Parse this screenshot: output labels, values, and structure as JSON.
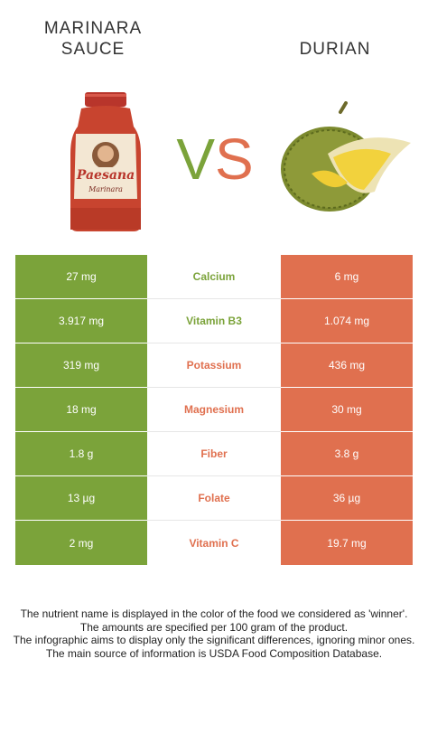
{
  "header": {
    "left_food": "MARINARA\nSAUCE",
    "right_food": "DURIAN",
    "vs_v": "V",
    "vs_s": "S"
  },
  "colors": {
    "left_accent": "#7ba33a",
    "right_accent": "#e0704f"
  },
  "images": {
    "left": "marinara-jar-image",
    "right": "durian-fruit-image",
    "jar_label_brand": "Paesana",
    "jar_label_sub": "Marinara"
  },
  "rows": [
    {
      "nutrient": "Calcium",
      "left": "27 mg",
      "right": "6 mg",
      "winner": "left"
    },
    {
      "nutrient": "Vitamin B3",
      "left": "3.917 mg",
      "right": "1.074 mg",
      "winner": "left"
    },
    {
      "nutrient": "Potassium",
      "left": "319 mg",
      "right": "436 mg",
      "winner": "right"
    },
    {
      "nutrient": "Magnesium",
      "left": "18 mg",
      "right": "30 mg",
      "winner": "right"
    },
    {
      "nutrient": "Fiber",
      "left": "1.8 g",
      "right": "3.8 g",
      "winner": "right"
    },
    {
      "nutrient": "Folate",
      "left": "13 µg",
      "right": "36 µg",
      "winner": "right"
    },
    {
      "nutrient": "Vitamin C",
      "left": "2 mg",
      "right": "19.7 mg",
      "winner": "right"
    }
  ],
  "footer": [
    "The nutrient name is displayed in the color of the food we considered as 'winner'.",
    "The amounts are specified per 100 gram of the product.",
    "The infographic aims to display only the significant differences, ignoring minor ones.",
    "The main source of information is USDA Food Composition Database."
  ]
}
